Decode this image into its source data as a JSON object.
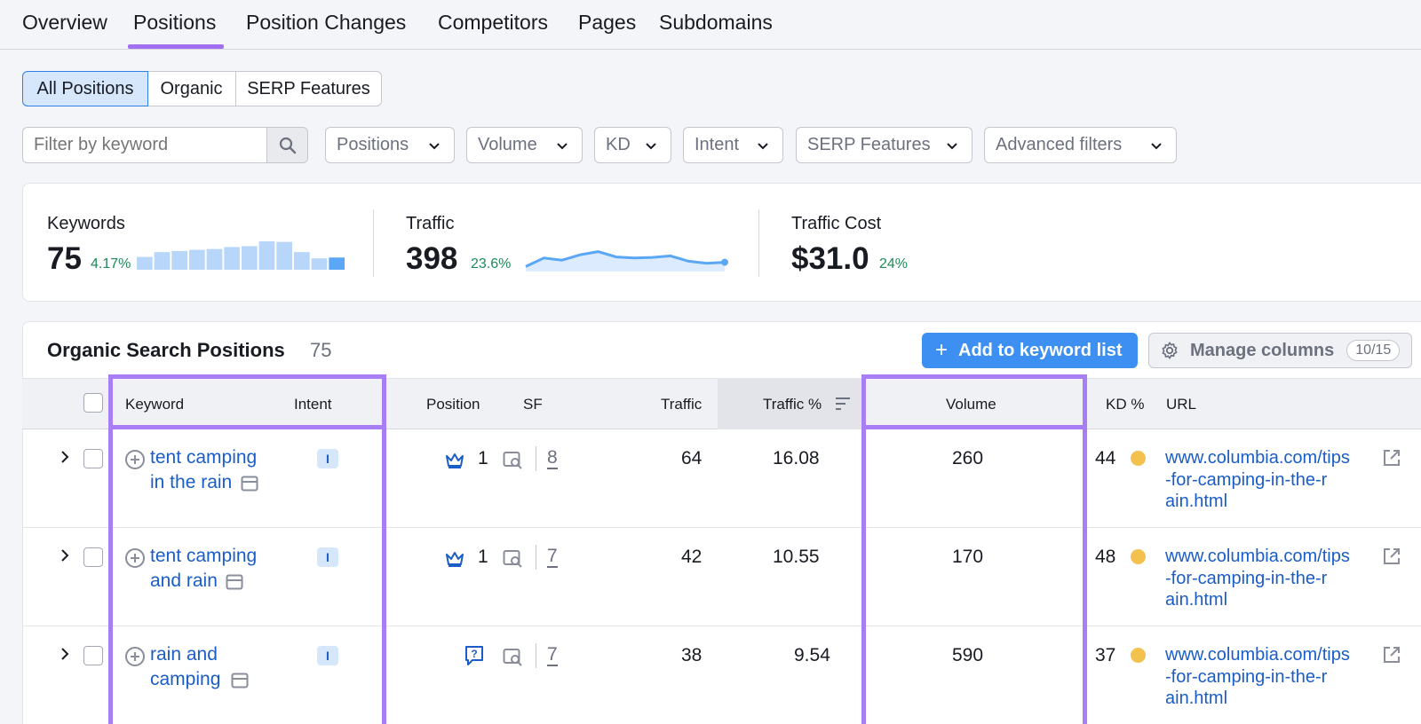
{
  "tabs": [
    {
      "label": "Overview"
    },
    {
      "label": "Positions"
    },
    {
      "label": "Position Changes"
    },
    {
      "label": "Competitors"
    },
    {
      "label": "Pages"
    },
    {
      "label": "Subdomains"
    }
  ],
  "segments": [
    {
      "label": "All Positions"
    },
    {
      "label": "Organic"
    },
    {
      "label": "SERP Features"
    }
  ],
  "filters": {
    "keyword_placeholder": "Filter by keyword",
    "dropdowns": [
      {
        "label": "Positions"
      },
      {
        "label": "Volume"
      },
      {
        "label": "KD"
      },
      {
        "label": "Intent"
      },
      {
        "label": "SERP Features"
      },
      {
        "label": "Advanced filters"
      }
    ]
  },
  "summary": {
    "keywords": {
      "label": "Keywords",
      "value": "75",
      "delta": "4.17%",
      "sparkline": [
        0.45,
        0.62,
        0.66,
        0.7,
        0.73,
        0.8,
        0.83,
        1.0,
        0.98,
        0.62,
        0.4,
        0.43
      ]
    },
    "traffic": {
      "label": "Traffic",
      "value": "398",
      "delta": "23.6%",
      "sparkline": [
        0.15,
        0.55,
        0.45,
        0.7,
        0.85,
        0.6,
        0.55,
        0.58,
        0.65,
        0.4,
        0.3,
        0.35
      ]
    },
    "traffic_cost": {
      "label": "Traffic Cost",
      "value": "$31.0",
      "delta": "24%"
    }
  },
  "table": {
    "title": "Organic Search Positions",
    "count": "75",
    "add_button": "Add to keyword list",
    "manage_button": "Manage columns",
    "columns_badge": "10/15",
    "headers": {
      "keyword": "Keyword",
      "intent": "Intent",
      "position": "Position",
      "sf": "SF",
      "traffic": "Traffic",
      "traffic_pct": "Traffic %",
      "volume": "Volume",
      "kd": "KD %",
      "url": "URL"
    },
    "rows": [
      {
        "keyword_l1": "tent camping",
        "keyword_l2": "in the rain",
        "intent": "I",
        "position": "1",
        "sf": "8",
        "traffic": "64",
        "traffic_pct": "16.08",
        "volume": "260",
        "kd": "44",
        "url_l1": "www.columbia.com/tips",
        "url_l2": "-for-camping-in-the-r",
        "url_l3": "ain.html"
      },
      {
        "keyword_l1": "tent camping",
        "keyword_l2": "and rain",
        "intent": "I",
        "position": "1",
        "sf": "7",
        "traffic": "42",
        "traffic_pct": "10.55",
        "volume": "170",
        "kd": "48",
        "url_l1": "www.columbia.com/tips",
        "url_l2": "-for-camping-in-the-r",
        "url_l3": "ain.html"
      },
      {
        "keyword_l1": "rain and",
        "keyword_l2": "camping",
        "intent": "I",
        "position": "",
        "sf": "7",
        "traffic": "38",
        "traffic_pct": "9.54",
        "volume": "590",
        "kd": "37",
        "url_l1": "www.columbia.com/tips",
        "url_l2": "-for-camping-in-the-r",
        "url_l3": "ain.html"
      }
    ]
  },
  "colors": {
    "accent": "#a77ef3",
    "primary_button": "#3d8ff2",
    "link": "#1a5dc7",
    "positive": "#1e8a5a",
    "kd_medium": "#f2c14e",
    "sparkline": "#5aa7f5"
  }
}
